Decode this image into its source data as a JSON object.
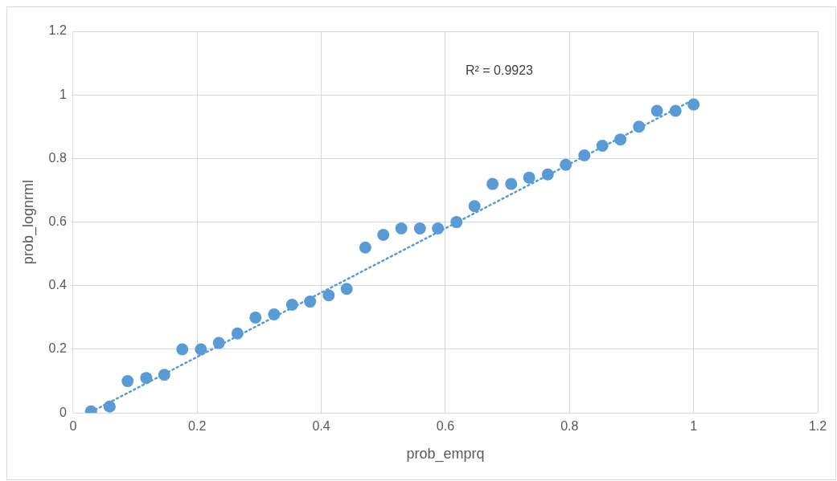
{
  "chart_data": {
    "type": "scatter",
    "xlabel": "prob_emprq",
    "ylabel": "prob_lognrml",
    "xlim": [
      0,
      1.2
    ],
    "xticks": [
      0,
      0.2,
      0.4,
      0.6,
      0.8,
      1,
      1.2
    ],
    "ylim": [
      0,
      1.2
    ],
    "yticks": [
      0,
      0.2,
      0.4,
      0.6,
      0.8,
      1,
      1.2
    ],
    "grid": true,
    "legend": false,
    "marker": "circle",
    "annotations": [
      "R² = 0.9923"
    ],
    "series": [
      {
        "color": "#5b9bd5",
        "x": [
          0.029,
          0.059,
          0.088,
          0.118,
          0.147,
          0.176,
          0.206,
          0.235,
          0.265,
          0.294,
          0.324,
          0.353,
          0.382,
          0.412,
          0.441,
          0.471,
          0.5,
          0.529,
          0.559,
          0.588,
          0.618,
          0.647,
          0.676,
          0.706,
          0.735,
          0.765,
          0.794,
          0.824,
          0.853,
          0.882,
          0.912,
          0.941,
          0.971,
          1
        ],
        "values": [
          0.005,
          0.02,
          0.1,
          0.11,
          0.12,
          0.2,
          0.2,
          0.22,
          0.25,
          0.3,
          0.31,
          0.34,
          0.35,
          0.37,
          0.39,
          0.52,
          0.56,
          0.58,
          0.58,
          0.58,
          0.6,
          0.65,
          0.72,
          0.72,
          0.74,
          0.75,
          0.78,
          0.81,
          0.84,
          0.86,
          0.9,
          0.95,
          0.95,
          0.97
        ]
      },
      {
        "type": "line",
        "color": "#5b9bd5",
        "marker": "none",
        "line_style": "dotted",
        "x": [
          0.029,
          1
        ],
        "values": [
          0.003,
          0.985
        ]
      }
    ]
  }
}
